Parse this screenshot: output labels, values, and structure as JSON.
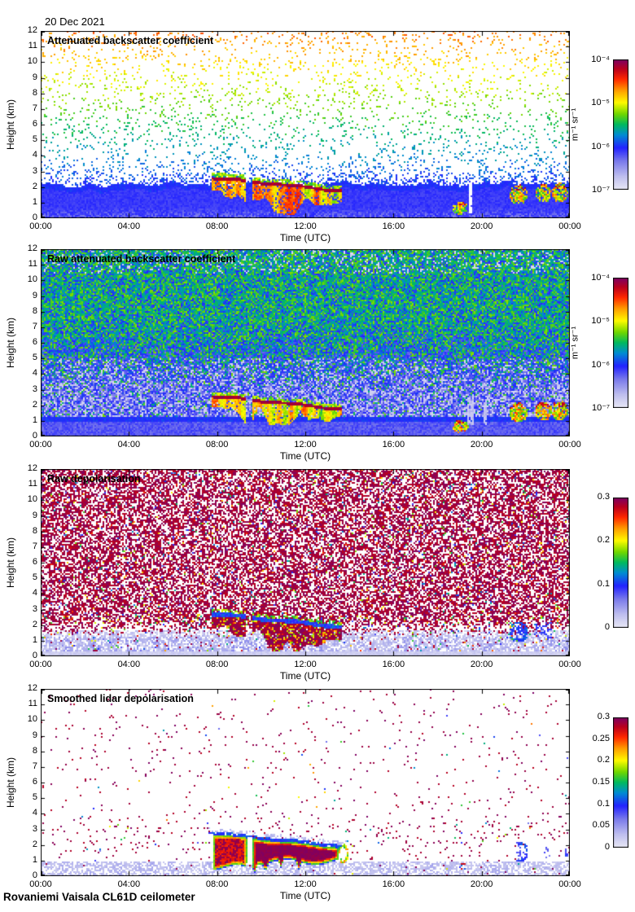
{
  "header": {
    "date": "20 Dec 2021"
  },
  "footer": {
    "station": "Rovaniemi Vaisala CL61D ceilometer"
  },
  "chart_data": {
    "type": "heatmap",
    "xlabel": "Time (UTC)",
    "ylabel": "Height (km)",
    "x_ticks": [
      "00:00",
      "04:00",
      "08:00",
      "12:00",
      "16:00",
      "20:00",
      "00:00"
    ],
    "x_range_hours": [
      0,
      24
    ],
    "y_ticks": [
      "0",
      "1",
      "2",
      "3",
      "4",
      "5",
      "6",
      "7",
      "8",
      "9",
      "10",
      "11",
      "12"
    ],
    "ylim_km": [
      0,
      12
    ],
    "grid": false,
    "colormap": "jet-like: pale-lavender (low) through blue, green, yellow, red to dark purple (high)",
    "panels": [
      {
        "id": "attenuated-backscatter",
        "title": "Attenuated backscatter coefficient",
        "style": "sparse_backscatter",
        "colorbar": {
          "scale": "log",
          "labels": [
            "10⁻⁴",
            "10⁻⁵",
            "10⁻⁶",
            "10⁻⁷"
          ],
          "units": "m⁻¹ sr⁻¹",
          "range": [
            1e-07,
            0.0001
          ]
        }
      },
      {
        "id": "raw-attenuated-backscatter",
        "title": "Raw attenuated backscatter coefficient",
        "style": "raw_backscatter",
        "colorbar": {
          "scale": "log",
          "labels": [
            "10⁻⁴",
            "10⁻⁵",
            "10⁻⁶",
            "10⁻⁷"
          ],
          "units": "m⁻¹ sr⁻¹",
          "range": [
            1e-07,
            0.0001
          ]
        }
      },
      {
        "id": "raw-depolarisation",
        "title": "Raw depolarisation",
        "style": "raw_depol",
        "colorbar": {
          "scale": "linear",
          "labels": [
            "0.3",
            "0.2",
            "0.1",
            "0"
          ],
          "units": "",
          "range": [
            0,
            0.3
          ]
        }
      },
      {
        "id": "smoothed-depolarisation",
        "title": "Smoothed lidar depolarisation",
        "style": "smoothed_depol",
        "colorbar": {
          "scale": "linear",
          "labels": [
            "0.3",
            "0.25",
            "0.2",
            "0.15",
            "0.1",
            "0.05",
            "0"
          ],
          "units": "",
          "range": [
            0,
            0.3
          ]
        }
      }
    ],
    "features": {
      "boundary_layer_top_km": 2.2,
      "cloud_event": {
        "start_utc": "07:45",
        "end_utc": "13:40",
        "base_start_km": 2.6,
        "base_end_km": 1.75,
        "gap_start_utc": "09:20",
        "gap_end_utc": "09:38",
        "virga_max_depth_km": 2.2
      },
      "evening_events": [
        {
          "start_utc": "18:40",
          "end_utc": "19:25",
          "h0_km": 0.25,
          "h1_km": 1.05
        },
        {
          "start_utc": "21:15",
          "end_utc": "22:05",
          "h0_km": 0.9,
          "h1_km": 2.15
        },
        {
          "start_utc": "22:25",
          "end_utc": "23:10",
          "h0_km": 1.0,
          "h1_km": 2.2
        },
        {
          "start_utc": "23:10",
          "end_utc": "23:55",
          "h0_km": 1.0,
          "h1_km": 2.25
        }
      ]
    }
  }
}
